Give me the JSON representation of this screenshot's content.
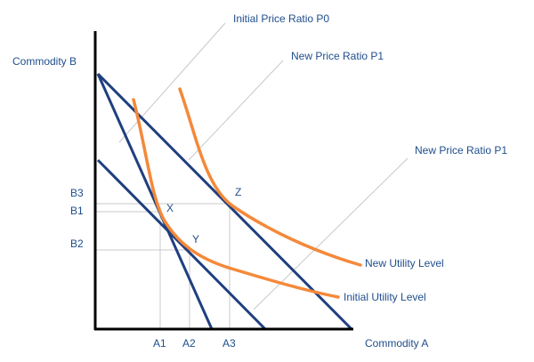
{
  "axes": {
    "y_label": "Commodity B",
    "x_label": "Commodity A"
  },
  "price_lines": [
    "Initial Price Ratio P0",
    "New Price Ratio P1",
    "New Price Ratio P1"
  ],
  "curves": [
    "New Utility Level",
    "Initial Utility Level"
  ],
  "y_ticks": [
    "B3",
    "B1",
    "B2"
  ],
  "x_ticks": [
    "A1",
    "A2",
    "A3"
  ],
  "points": [
    "X",
    "Y",
    "Z"
  ]
}
